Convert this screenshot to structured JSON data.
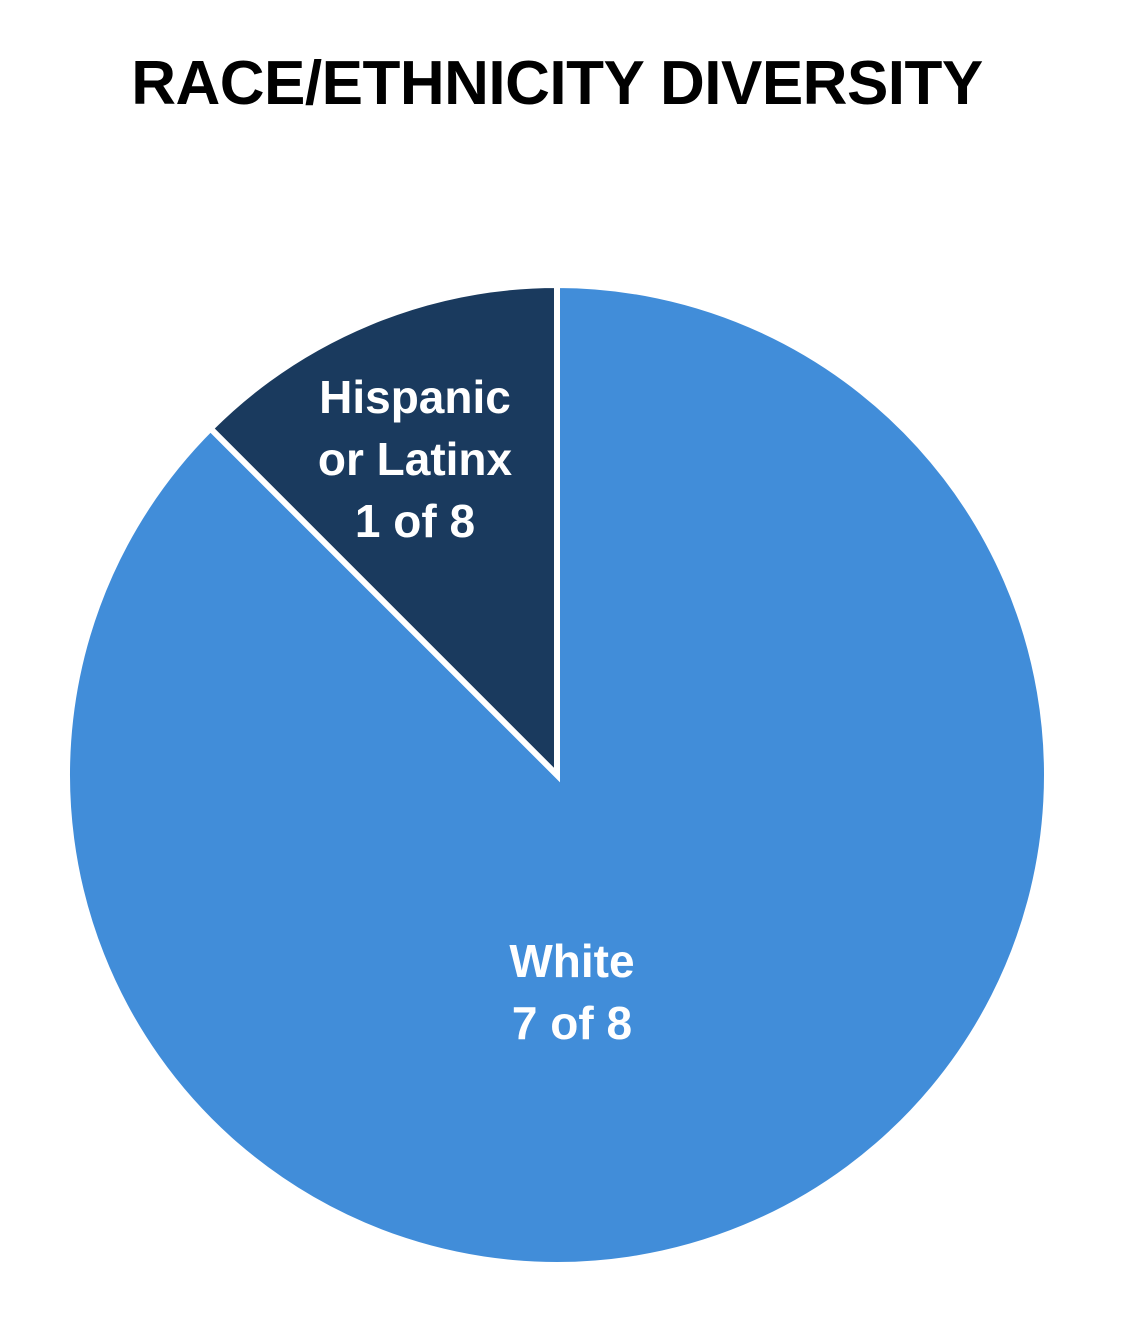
{
  "chart_data": {
    "type": "pie",
    "title": "RACE/ETHNICITY DIVERSITY",
    "categories": [
      "White",
      "Hispanic or Latinx"
    ],
    "values": [
      7,
      1
    ],
    "value_labels": [
      "7 of 8",
      "1 of 8"
    ],
    "colors": [
      "#418dd9",
      "#1a3a5e"
    ]
  }
}
